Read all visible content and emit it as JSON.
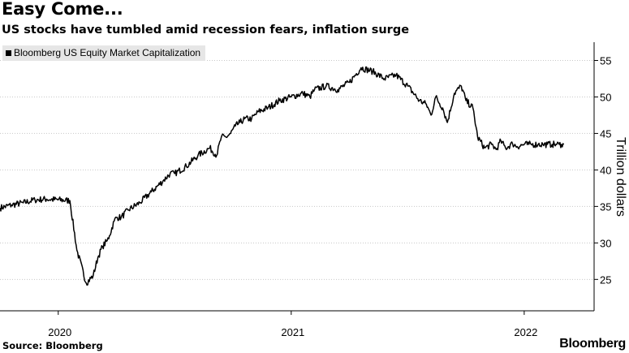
{
  "header": {
    "title": "Easy Come...",
    "subtitle": "US stocks have tumbled amid recession fears, inflation surge"
  },
  "footer": {
    "source": "Source: Bloomberg",
    "brand": "Bloomberg"
  },
  "colors": {
    "line": "#000000",
    "grid": "#c8c8c8",
    "legend_bg": "#e6e6e6",
    "text": "#000000"
  },
  "chart_data": {
    "type": "line",
    "title": "Easy Come...",
    "subtitle": "US stocks have tumbled amid recession fears, inflation surge",
    "ylabel": "Trillion dollars",
    "xlabel": "",
    "ylim": [
      20.7,
      57.5
    ],
    "xlim": [
      2019.75,
      2022.3
    ],
    "y_ticks": [
      25,
      30,
      35,
      40,
      45,
      50,
      55
    ],
    "y_tick_labels": [
      "25",
      "30",
      "35",
      "40",
      "45",
      "50",
      "55"
    ],
    "x_ticks": [
      2020.0,
      2021.0,
      2022.0
    ],
    "x_tick_labels": [
      "2020",
      "2021",
      "2022"
    ],
    "grid": "horizontal dotted",
    "legend": [
      {
        "label": "Bloomberg US Equity Market Capitalization",
        "position": "top-left"
      }
    ],
    "series": [
      {
        "name": "Bloomberg US Equity Market Capitalization",
        "x": [
          2019.75,
          2019.8,
          2019.85,
          2019.9,
          2019.95,
          2020.05,
          2020.08,
          2020.12,
          2020.15,
          2020.17,
          2020.19,
          2020.21,
          2020.22,
          2020.24,
          2020.25,
          2020.27,
          2020.3,
          2020.35,
          2020.4,
          2020.45,
          2020.48,
          2020.5,
          2020.55,
          2020.6,
          2020.65,
          2020.68,
          2020.7,
          2020.72,
          2020.74,
          2020.76,
          2020.78,
          2020.8,
          2020.83,
          2020.86,
          2020.9,
          2020.95,
          2021.0,
          2021.05,
          2021.08,
          2021.1,
          2021.15,
          2021.2,
          2021.25,
          2021.3,
          2021.35,
          2021.4,
          2021.45,
          2021.5,
          2021.55,
          2021.58,
          2021.6,
          2021.62,
          2021.65,
          2021.67,
          2021.7,
          2021.73,
          2021.75,
          2021.78,
          2021.8,
          2021.83,
          2021.86,
          2021.88,
          2021.9,
          2021.92,
          2021.95,
          2021.97,
          2022.0,
          2022.02,
          2022.03,
          2022.06,
          2022.08,
          2022.1,
          2022.12,
          2022.14,
          2022.15,
          2022.16,
          2022.17
        ],
        "values": [
          34.8,
          35.2,
          35.5,
          35.9,
          36.0,
          35.8,
          29.0,
          24.5,
          25.5,
          28.0,
          29.5,
          30.3,
          31.0,
          33.0,
          33.5,
          33.5,
          34.5,
          35.5,
          37.0,
          38.5,
          39.5,
          39.5,
          40.5,
          42.0,
          43.0,
          42.0,
          44.5,
          44.5,
          45.0,
          46.0,
          46.5,
          47.0,
          47.0,
          48.0,
          48.5,
          49.5,
          50.0,
          50.5,
          50.0,
          51.0,
          51.5,
          51.0,
          52.0,
          54.0,
          53.5,
          52.5,
          53.0,
          51.5,
          49.5,
          49.0,
          47.5,
          50.0,
          48.5,
          46.5,
          50.5,
          51.5,
          49.5,
          48.5,
          44.5,
          43.0,
          43.5,
          42.8,
          44.0,
          43.0,
          43.6,
          43.2,
          43.5,
          43.5,
          43.5,
          43.5,
          43.5,
          43.5,
          43.5,
          43.5,
          43.5,
          43.5,
          43.5
        ]
      }
    ]
  }
}
